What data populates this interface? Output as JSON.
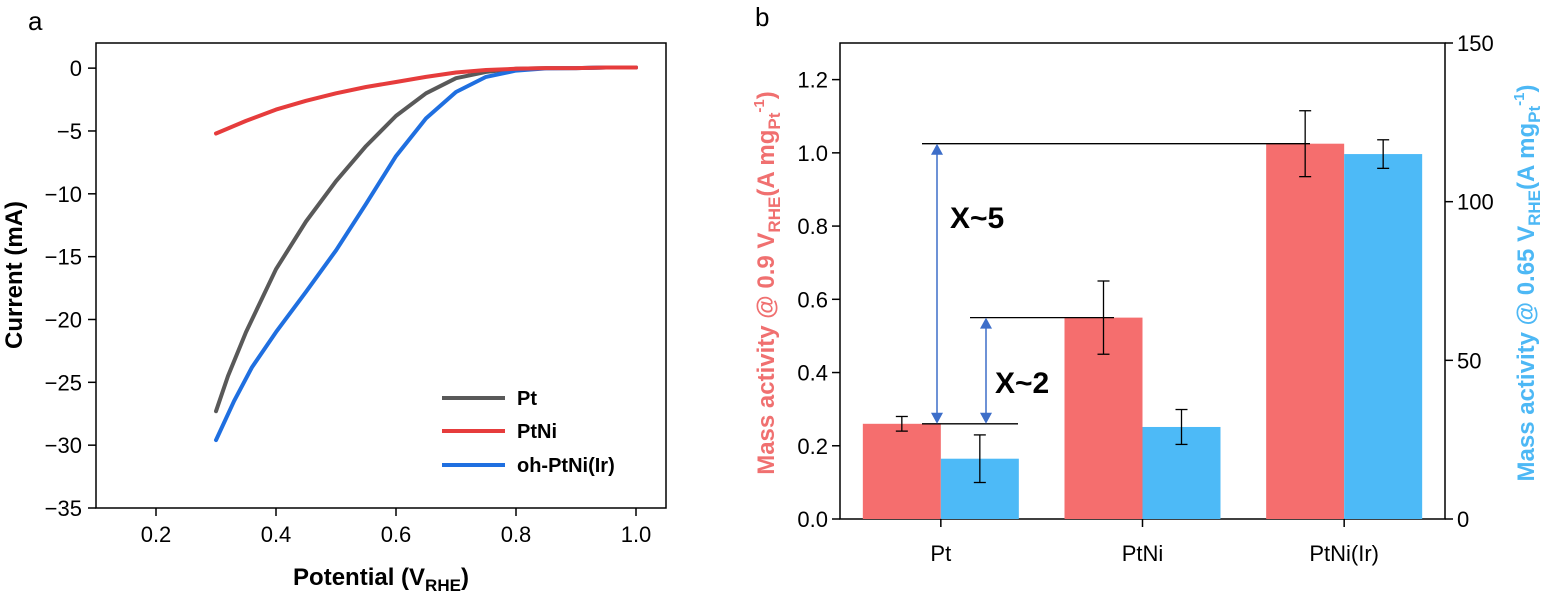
{
  "panels": {
    "a": "a",
    "b": "b"
  },
  "chart_data": [
    {
      "type": "line",
      "panel": "a",
      "xlabel_main": "Potential (V",
      "xlabel_sub": "RHE",
      "xlabel_end": ")",
      "ylabel": "Current (mA)",
      "xlim": [
        0.1,
        1.05
      ],
      "ylim": [
        -35,
        2
      ],
      "x_ticks": [
        "0.2",
        "0.4",
        "0.6",
        "0.8",
        "1.0"
      ],
      "y_ticks": [
        "0",
        "−5",
        "−10",
        "−15",
        "−20",
        "−25",
        "−30",
        "−35"
      ],
      "legend_position": "bottom-right",
      "grid": false,
      "series": [
        {
          "name": "Pt",
          "color": "#595959",
          "x": [
            0.3,
            0.32,
            0.35,
            0.4,
            0.45,
            0.5,
            0.55,
            0.6,
            0.65,
            0.7,
            0.75,
            0.8,
            0.85,
            0.9,
            0.95,
            1.0
          ],
          "y": [
            -27.3,
            -24.5,
            -21.0,
            -16.0,
            -12.2,
            -9.0,
            -6.2,
            -3.8,
            -2.0,
            -0.8,
            -0.3,
            -0.05,
            0.0,
            0.0,
            0.05,
            0.05
          ]
        },
        {
          "name": "PtNi",
          "color": "#e63c3c",
          "x": [
            0.3,
            0.35,
            0.4,
            0.45,
            0.5,
            0.55,
            0.6,
            0.65,
            0.7,
            0.75,
            0.8,
            0.85,
            0.9,
            0.95,
            1.0
          ],
          "y": [
            -5.2,
            -4.2,
            -3.3,
            -2.6,
            -2.0,
            -1.5,
            -1.1,
            -0.7,
            -0.35,
            -0.15,
            -0.05,
            0.0,
            0.0,
            0.05,
            0.05
          ]
        },
        {
          "name": "oh-PtNi(Ir)",
          "color": "#1f6fe0",
          "x": [
            0.3,
            0.33,
            0.36,
            0.4,
            0.45,
            0.5,
            0.55,
            0.6,
            0.65,
            0.7,
            0.75,
            0.8,
            0.85,
            0.9,
            0.95,
            1.0
          ],
          "y": [
            -29.6,
            -26.5,
            -23.8,
            -21.0,
            -17.8,
            -14.5,
            -10.8,
            -7.0,
            -4.0,
            -1.9,
            -0.7,
            -0.2,
            -0.02,
            0.0,
            0.05,
            0.05
          ]
        }
      ]
    },
    {
      "type": "bar",
      "panel": "b",
      "categories": [
        "Pt",
        "PtNi",
        "PtNi(Ir)"
      ],
      "left_axis": {
        "label_main": "Mass activity @ 0.9 V",
        "label_sub": "RHE",
        "label_mid": "(A mg",
        "label_sub2": "Pt",
        "label_sup": "-1",
        "label_end": ")",
        "color": "#f07070",
        "ylim": [
          0,
          1.3
        ],
        "ticks": [
          "0.0",
          "0.2",
          "0.4",
          "0.6",
          "0.8",
          "1.0",
          "1.2"
        ]
      },
      "right_axis": {
        "label_main": "Mass activity @ 0.65 V",
        "label_sub": "RHE",
        "label_mid": "(A mg",
        "label_sub2": "Pt",
        "label_sup": "-1",
        "label_end": ")",
        "color": "#4db8f5",
        "ylim": [
          0,
          150
        ],
        "ticks": [
          "0",
          "50",
          "100",
          "150"
        ]
      },
      "series": [
        {
          "axis": "left",
          "color": "#f56e6e",
          "values": [
            0.26,
            0.55,
            1.025
          ],
          "errors": [
            0.02,
            0.1,
            0.09
          ]
        },
        {
          "axis": "right",
          "color": "#4dbaf7",
          "values": [
            19,
            29,
            115
          ],
          "errors": [
            7.5,
            5.5,
            4.5
          ]
        }
      ],
      "annotations": [
        {
          "text": "X~5",
          "from_value": 0.26,
          "to_value": 1.025
        },
        {
          "text": "X~2",
          "from_value": 0.26,
          "to_value": 0.55
        }
      ]
    }
  ]
}
